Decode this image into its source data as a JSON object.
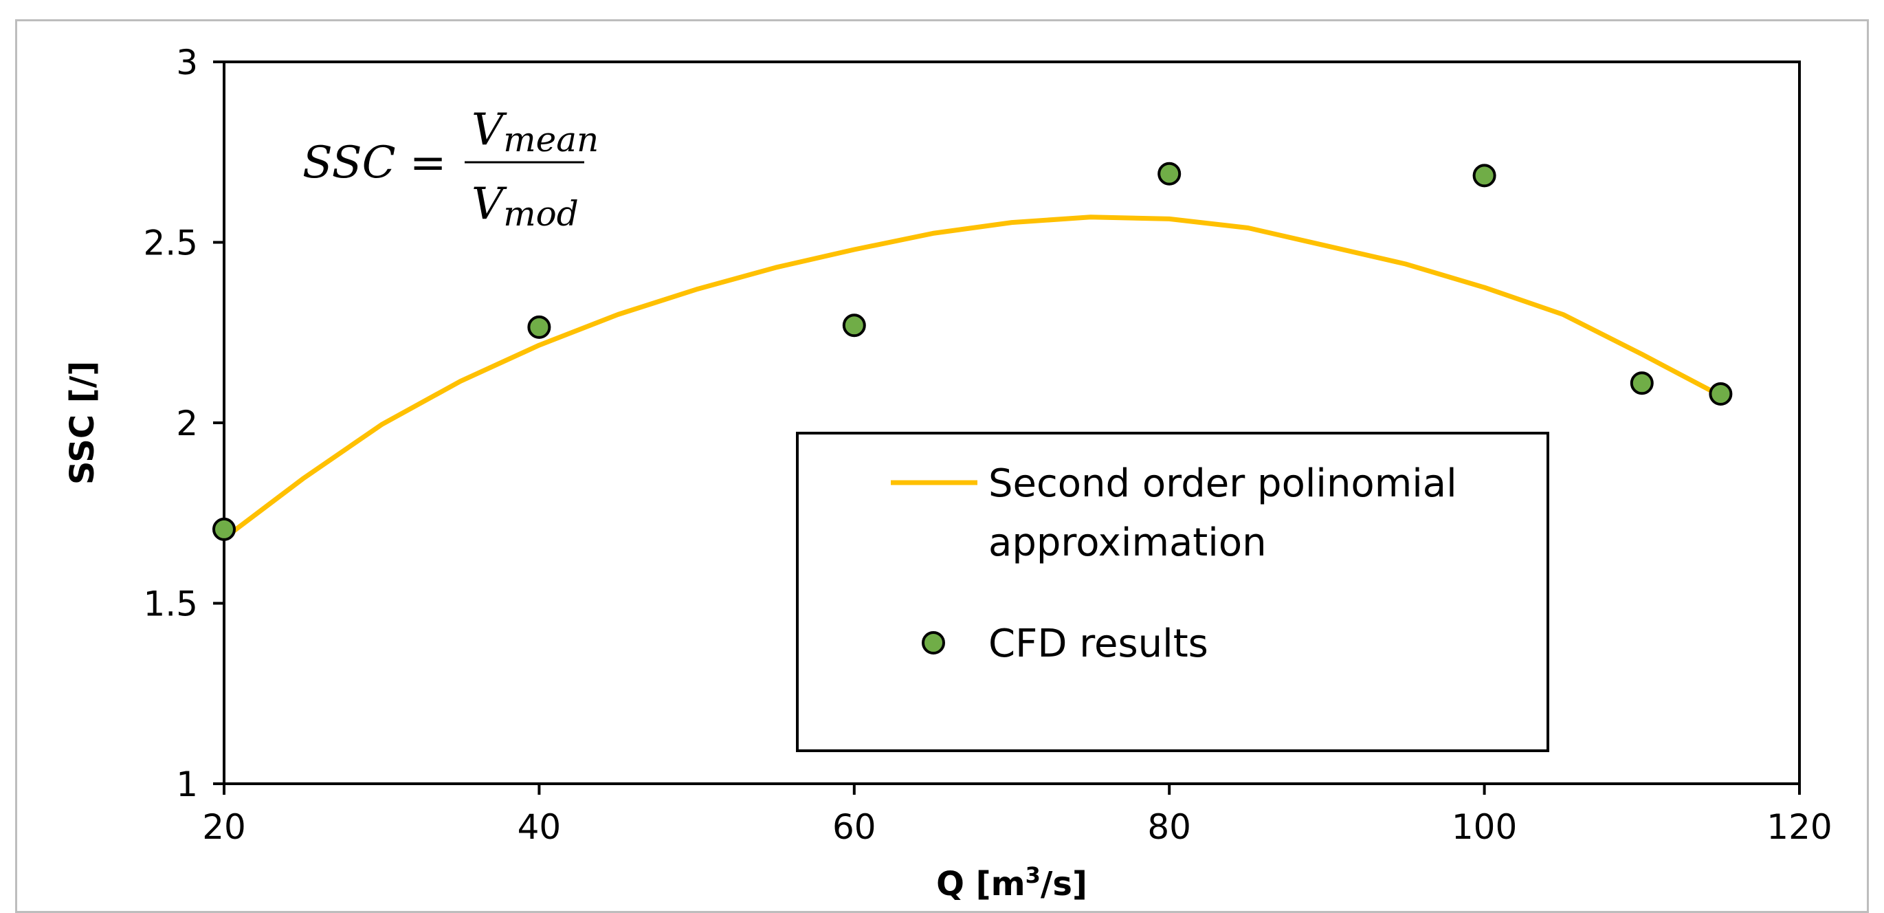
{
  "chart_data": {
    "type": "scatter",
    "xlabel": "Q [m³/s]",
    "xlabel_main": "Q [m",
    "xlabel_sup": "3",
    "xlabel_tail": "/s]",
    "ylabel": "SSC [/]",
    "xlim": [
      20,
      120
    ],
    "ylim": [
      1,
      3
    ],
    "xticks": [
      20,
      40,
      60,
      80,
      100,
      120
    ],
    "yticks": [
      1,
      1.5,
      2,
      2.5,
      3
    ],
    "xtick_labels": [
      "20",
      "40",
      "60",
      "80",
      "100",
      "120"
    ],
    "ytick_labels": [
      "1",
      "1.5",
      "2",
      "2.5",
      "3"
    ],
    "grid": false,
    "legend_placement": "lower-center",
    "annotation": {
      "lhs": "SSC =",
      "numerator": "V",
      "numerator_sub": "mean",
      "denominator": "V",
      "denominator_sub": "mod"
    },
    "series": [
      {
        "name": "Second order polinomial approximation",
        "legend_lines": [
          "Second order polinomial",
          "approximation"
        ],
        "kind": "line",
        "color": "#FFC000",
        "x": [
          20,
          25,
          30,
          35,
          40,
          45,
          50,
          55,
          60,
          65,
          70,
          75,
          80,
          85,
          90,
          95,
          100,
          105,
          110,
          115
        ],
        "y": [
          1.68,
          1.845,
          1.995,
          2.115,
          2.215,
          2.3,
          2.37,
          2.43,
          2.48,
          2.525,
          2.555,
          2.57,
          2.565,
          2.54,
          2.49,
          2.44,
          2.375,
          2.3,
          2.19,
          2.075
        ]
      },
      {
        "name": "CFD results",
        "kind": "scatter",
        "color": "#70AD47",
        "x": [
          20,
          40,
          60,
          80,
          100,
          110,
          115
        ],
        "y": [
          1.705,
          2.265,
          2.27,
          2.69,
          2.685,
          2.11,
          2.08
        ]
      }
    ]
  }
}
